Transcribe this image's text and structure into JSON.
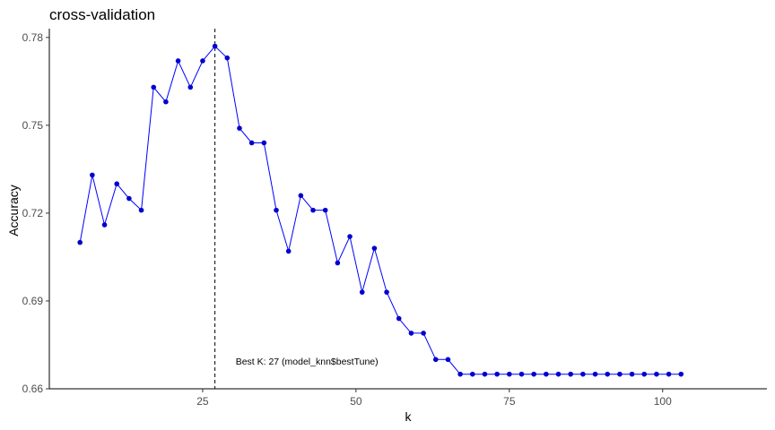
{
  "chart_data": {
    "type": "line",
    "title": "cross-validation",
    "xlabel": "k",
    "ylabel": "Accuracy",
    "xlim": [
      0,
      117
    ],
    "ylim": [
      0.66,
      0.783
    ],
    "x_ticks": [
      25,
      50,
      75,
      100
    ],
    "x_tick_labels": [
      "25",
      "50",
      "75",
      "100"
    ],
    "y_ticks": [
      0.66,
      0.69,
      0.72,
      0.75,
      0.78
    ],
    "y_tick_labels": [
      "0.66",
      "0.69",
      "0.72",
      "0.75",
      "0.78"
    ],
    "grid": false,
    "line_color": "#0000ff",
    "point_color": "#0000cd",
    "series": [
      {
        "x": [
          5,
          7,
          9,
          11,
          13,
          15,
          17,
          19,
          21,
          23,
          25,
          27,
          29,
          31,
          33,
          35,
          37,
          39,
          41,
          43,
          45,
          47,
          49,
          51,
          53,
          55,
          57,
          59,
          61,
          63,
          65,
          67,
          69,
          71,
          73,
          75,
          77,
          79,
          81,
          83,
          85,
          87,
          89,
          91,
          93,
          95,
          97,
          99,
          101,
          103
        ],
        "values": [
          0.71,
          0.733,
          0.716,
          0.73,
          0.725,
          0.721,
          0.763,
          0.758,
          0.772,
          0.763,
          0.772,
          0.777,
          0.773,
          0.749,
          0.744,
          0.744,
          0.721,
          0.707,
          0.726,
          0.721,
          0.721,
          0.703,
          0.712,
          0.693,
          0.708,
          0.693,
          0.684,
          0.679,
          0.679,
          0.67,
          0.67,
          0.665,
          0.665,
          0.665,
          0.665,
          0.665,
          0.665,
          0.665,
          0.665,
          0.665,
          0.665,
          0.665,
          0.665,
          0.665,
          0.665,
          0.665,
          0.665,
          0.665,
          0.665,
          0.665
        ]
      }
    ],
    "best_k": 27,
    "annotation": {
      "text": "Best K: 27 (model_knn$bestTune)",
      "x": 42,
      "y": 0.6695
    }
  }
}
